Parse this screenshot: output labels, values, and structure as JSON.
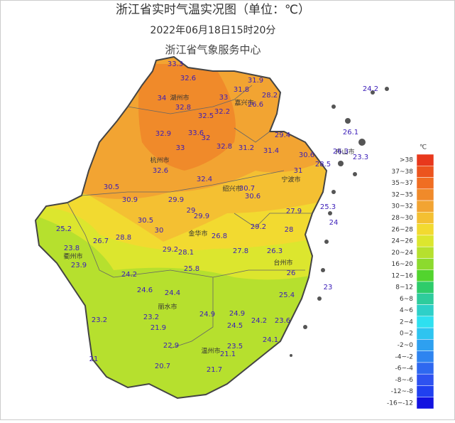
{
  "title": "浙江省实时气温实况图（单位：℃）",
  "subtitle": "2022年06月18日15时20分",
  "source": "浙江省气象服务中心",
  "cities": [
    "湖州市",
    "嘉兴市",
    "杭州市",
    "舟山市",
    "宁波市",
    "绍兴市",
    "金华市",
    "衢州市",
    "台州市",
    "丽水市",
    "温州市"
  ],
  "stations": [
    "33.3",
    "32.6",
    "31.9",
    "34",
    "33",
    "31.8",
    "28.2",
    "32.8",
    "32.2",
    "32.5",
    "26.6",
    "32.9",
    "33.6",
    "32",
    "29.4",
    "24.2",
    "26.1",
    "33",
    "32.8",
    "31.2",
    "31.4",
    "30.6",
    "26.3",
    "23.3",
    "28.5",
    "32.6",
    "31",
    "32.4",
    "30.7",
    "30.5",
    "30.6",
    "30.9",
    "29.9",
    "25.3",
    "27.9",
    "29",
    "29.9",
    "30.5",
    "24",
    "25.2",
    "30",
    "29.2",
    "28",
    "26.7",
    "28.8",
    "26.8",
    "23.8",
    "29.2",
    "28.1",
    "27.8",
    "26.3",
    "23.9",
    "25.8",
    "24.2",
    "26",
    "23",
    "24.6",
    "24.4",
    "25.4",
    "24.9",
    "24.9",
    "23.2",
    "24.2",
    "23.6",
    "23.2",
    "24.5",
    "21.9",
    "24.1",
    "22.9",
    "23.5",
    "21.1",
    "21",
    "20.7",
    "21.7"
  ],
  "legend": {
    "unit": "℃",
    "items": [
      {
        "label": ">38",
        "color": "#e8381c"
      },
      {
        "label": "37~38",
        "color": "#ec541e"
      },
      {
        "label": "35~37",
        "color": "#f06e22"
      },
      {
        "label": "32~35",
        "color": "#f08a2a"
      },
      {
        "label": "30~32",
        "color": "#f2a432"
      },
      {
        "label": "28~30",
        "color": "#f4c032"
      },
      {
        "label": "26~28",
        "color": "#f2da30"
      },
      {
        "label": "24~26",
        "color": "#dce62e"
      },
      {
        "label": "20~24",
        "color": "#b6e02e"
      },
      {
        "label": "16~20",
        "color": "#8cda2e"
      },
      {
        "label": "12~16",
        "color": "#52d42e"
      },
      {
        "label": "8~12",
        "color": "#2ecc6a"
      },
      {
        "label": "6~8",
        "color": "#2ecc9c"
      },
      {
        "label": "4~6",
        "color": "#2ed0c8"
      },
      {
        "label": "2~4",
        "color": "#2ee0f0"
      },
      {
        "label": "0~2",
        "color": "#2ec4f0"
      },
      {
        "label": "-2~0",
        "color": "#2ea0f0"
      },
      {
        "label": "-4~-2",
        "color": "#2e84f0"
      },
      {
        "label": "-6~-4",
        "color": "#2e68f0"
      },
      {
        "label": "-8~-6",
        "color": "#2e52f0"
      },
      {
        "label": "-12~-8",
        "color": "#2040f0"
      },
      {
        "label": "-16~-12",
        "color": "#1212e0"
      }
    ]
  }
}
